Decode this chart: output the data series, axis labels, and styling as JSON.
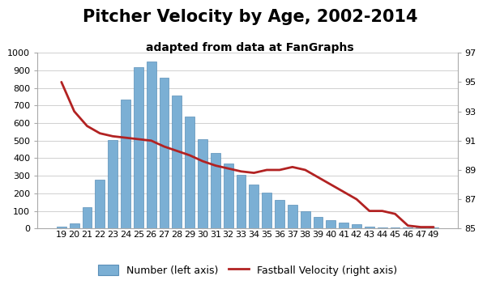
{
  "title": "Pitcher Velocity by Age, 2002-2014",
  "subtitle": "adapted from data at FanGraphs",
  "ages": [
    19,
    20,
    21,
    22,
    23,
    24,
    25,
    26,
    27,
    28,
    29,
    30,
    31,
    32,
    33,
    34,
    35,
    36,
    37,
    38,
    39,
    40,
    41,
    42,
    43,
    44,
    45,
    46,
    47,
    49
  ],
  "counts": [
    10,
    30,
    120,
    280,
    505,
    735,
    920,
    950,
    860,
    755,
    635,
    510,
    430,
    370,
    305,
    250,
    205,
    165,
    135,
    97,
    68,
    47,
    35,
    25,
    13,
    5,
    8,
    7,
    5,
    5
  ],
  "velocities": [
    95.0,
    93.0,
    92.0,
    91.5,
    91.3,
    91.2,
    91.1,
    91.0,
    90.6,
    90.3,
    90.0,
    89.6,
    89.3,
    89.1,
    88.9,
    88.8,
    89.0,
    89.0,
    89.2,
    89.0,
    88.5,
    88.0,
    87.5,
    87.0,
    86.2,
    86.2,
    86.0,
    85.2,
    85.1,
    85.1
  ],
  "bar_color": "#7bafd4",
  "bar_edge_color": "#5a8fb8",
  "line_color": "#b22222",
  "left_legend": "Number (left axis)",
  "right_legend": "Fastball Velocity (right axis)",
  "ylim_left": [
    0,
    1000
  ],
  "ylim_right": [
    85.0,
    97.0
  ],
  "yticks_left": [
    0,
    100,
    200,
    300,
    400,
    500,
    600,
    700,
    800,
    900,
    1000
  ],
  "yticks_right": [
    85.0,
    87.0,
    89.0,
    91.0,
    93.0,
    95.0,
    97.0
  ],
  "title_fontsize": 15,
  "subtitle_fontsize": 10,
  "tick_fontsize": 8,
  "legend_fontsize": 9,
  "background_color": "#ffffff",
  "grid_color": "#d0d0d0",
  "spine_color": "#aaaaaa"
}
